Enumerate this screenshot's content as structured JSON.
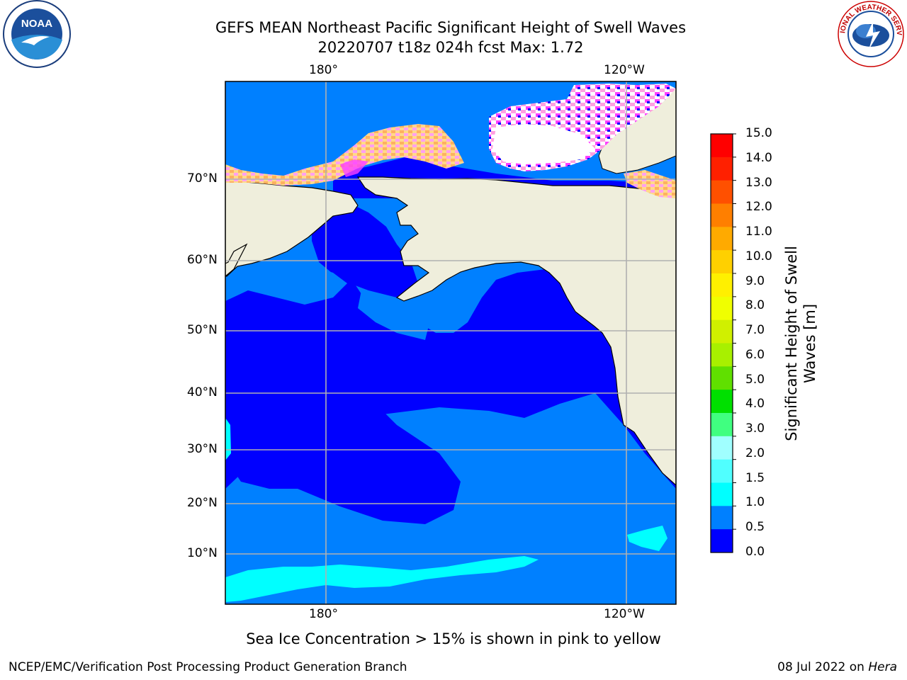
{
  "header": {
    "title_line1": "GEFS MEAN Northeast Pacific Significant Height of Swell Waves",
    "title_line2": "20220707 t18z 024h fcst   Max: 1.72"
  },
  "logos": {
    "left": "NOAA",
    "right": "NATIONAL WEATHER SERVICE"
  },
  "map": {
    "lon_labels_top": [
      "180°",
      "120°W"
    ],
    "lon_labels_bottom": [
      "180°",
      "120°W"
    ],
    "lat_labels": [
      "70°N",
      "60°N",
      "50°N",
      "40°N",
      "30°N",
      "20°N",
      "10°N"
    ],
    "ocean_color": "#0000ff",
    "land_color": "#efeedc",
    "ice_colors": [
      "#ff40ff",
      "#ff9ff0",
      "#ffd27f",
      "#ffc060"
    ]
  },
  "colorbar": {
    "label_line1": "Significant Height of Swell",
    "label_line2": "Waves [m]",
    "ticks": [
      "15.0",
      "14.0",
      "13.0",
      "12.0",
      "11.0",
      "10.0",
      "9.0",
      "8.0",
      "7.0",
      "6.0",
      "5.0",
      "4.0",
      "3.0",
      "2.0",
      "1.5",
      "1.0",
      "0.5",
      "0.0"
    ],
    "colors_top_to_bottom": [
      "#ff0000",
      "#ff2000",
      "#ff5000",
      "#ff7f00",
      "#ffaa00",
      "#ffd000",
      "#fff000",
      "#f0ff00",
      "#d0f000",
      "#a8f000",
      "#60e000",
      "#00e000",
      "#40ff80",
      "#a0ffff",
      "#50ffff",
      "#00ffff",
      "#0080ff",
      "#0000ff"
    ]
  },
  "caption": "Sea Ice Concentration > 15% is shown in pink to yellow",
  "footer": {
    "left": "NCEP/EMC/Verification Post Processing Product Generation Branch",
    "right_date": "08 Jul 2022 on ",
    "right_host": "Hera"
  }
}
